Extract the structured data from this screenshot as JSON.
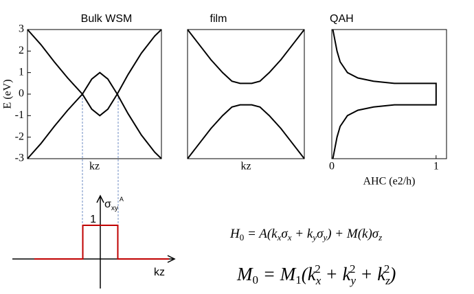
{
  "chart_data": [
    {
      "type": "line",
      "title": "Bulk WSM",
      "xlabel": "kz",
      "ylabel": "E (eV)",
      "xlim": [
        0,
        1
      ],
      "ylim": [
        -3,
        3
      ],
      "yticks": [
        -3,
        -2,
        -1,
        0,
        1,
        2,
        3
      ],
      "x": [
        0,
        0.1,
        0.2,
        0.3,
        0.41,
        0.48,
        0.54,
        0.6,
        0.67,
        0.75,
        0.85,
        0.95,
        1
      ],
      "series": [
        {
          "color": "#000000",
          "values": [
            3,
            2.3,
            1.5,
            0.75,
            0,
            -0.7,
            -1,
            -0.7,
            0,
            0.9,
            1.9,
            2.7,
            3
          ]
        },
        {
          "color": "#000000",
          "values": [
            -3,
            -2.3,
            -1.5,
            -0.75,
            0,
            0.7,
            1,
            0.7,
            0,
            -0.9,
            -1.9,
            -2.7,
            -3
          ]
        }
      ]
    },
    {
      "type": "line",
      "title": "film",
      "xlabel": "kz",
      "xlim": [
        0,
        1
      ],
      "ylim": [
        -3,
        3
      ],
      "x": [
        0,
        0.1,
        0.2,
        0.3,
        0.38,
        0.45,
        0.5,
        0.55,
        0.62,
        0.7,
        0.8,
        0.9,
        1
      ],
      "series": [
        {
          "color": "#000000",
          "values": [
            3,
            2.3,
            1.6,
            1.0,
            0.6,
            0.5,
            0.5,
            0.5,
            0.6,
            1.0,
            1.6,
            2.3,
            3
          ]
        },
        {
          "color": "#000000",
          "values": [
            -3,
            -2.3,
            -1.6,
            -1.0,
            -0.6,
            -0.5,
            -0.5,
            -0.5,
            -0.6,
            -1.0,
            -1.6,
            -2.3,
            -3
          ]
        }
      ]
    },
    {
      "type": "line",
      "title": "QAH",
      "xlabel": "AHC (e2/h)",
      "xlim": [
        0,
        1.1
      ],
      "ylim": [
        -3,
        3
      ],
      "xticks": [
        0,
        1
      ],
      "series": [
        {
          "color": "#000000",
          "x": [
            0.01,
            0.03,
            0.05,
            0.08,
            0.15,
            0.25,
            0.4,
            0.6,
            1,
            1,
            0.6,
            0.4,
            0.25,
            0.15,
            0.08,
            0.05,
            0.03,
            0.01
          ],
          "values": [
            3,
            2.5,
            2,
            1.5,
            1,
            0.75,
            0.6,
            0.5,
            0.5,
            -0.5,
            -0.5,
            -0.6,
            -0.75,
            -1,
            -1.5,
            -2,
            -2.5,
            -3
          ]
        }
      ]
    },
    {
      "type": "line",
      "xlabel": "kz",
      "ylabel": [
        "σ",
        "xy",
        "A"
      ],
      "xlim": [
        -1,
        1
      ],
      "ylim": [
        0,
        1
      ],
      "yticks": [
        1
      ],
      "series": [
        {
          "color": "#c00000",
          "x": [
            -0.98,
            -0.26,
            -0.26,
            0.26,
            0.26,
            1.02
          ],
          "values": [
            0,
            0,
            1,
            1,
            0,
            0
          ]
        }
      ]
    }
  ],
  "equations": [
    [
      "H",
      "0",
      " = A(k",
      "x",
      "σ",
      "x",
      " + k",
      "y",
      "σ",
      "y",
      ") + M(k)σ",
      "z"
    ],
    [
      "M",
      "0",
      " = M",
      "1",
      "(k",
      "x",
      "2",
      " + k",
      "y",
      "2",
      " + k",
      "z",
      "2",
      ")"
    ]
  ]
}
